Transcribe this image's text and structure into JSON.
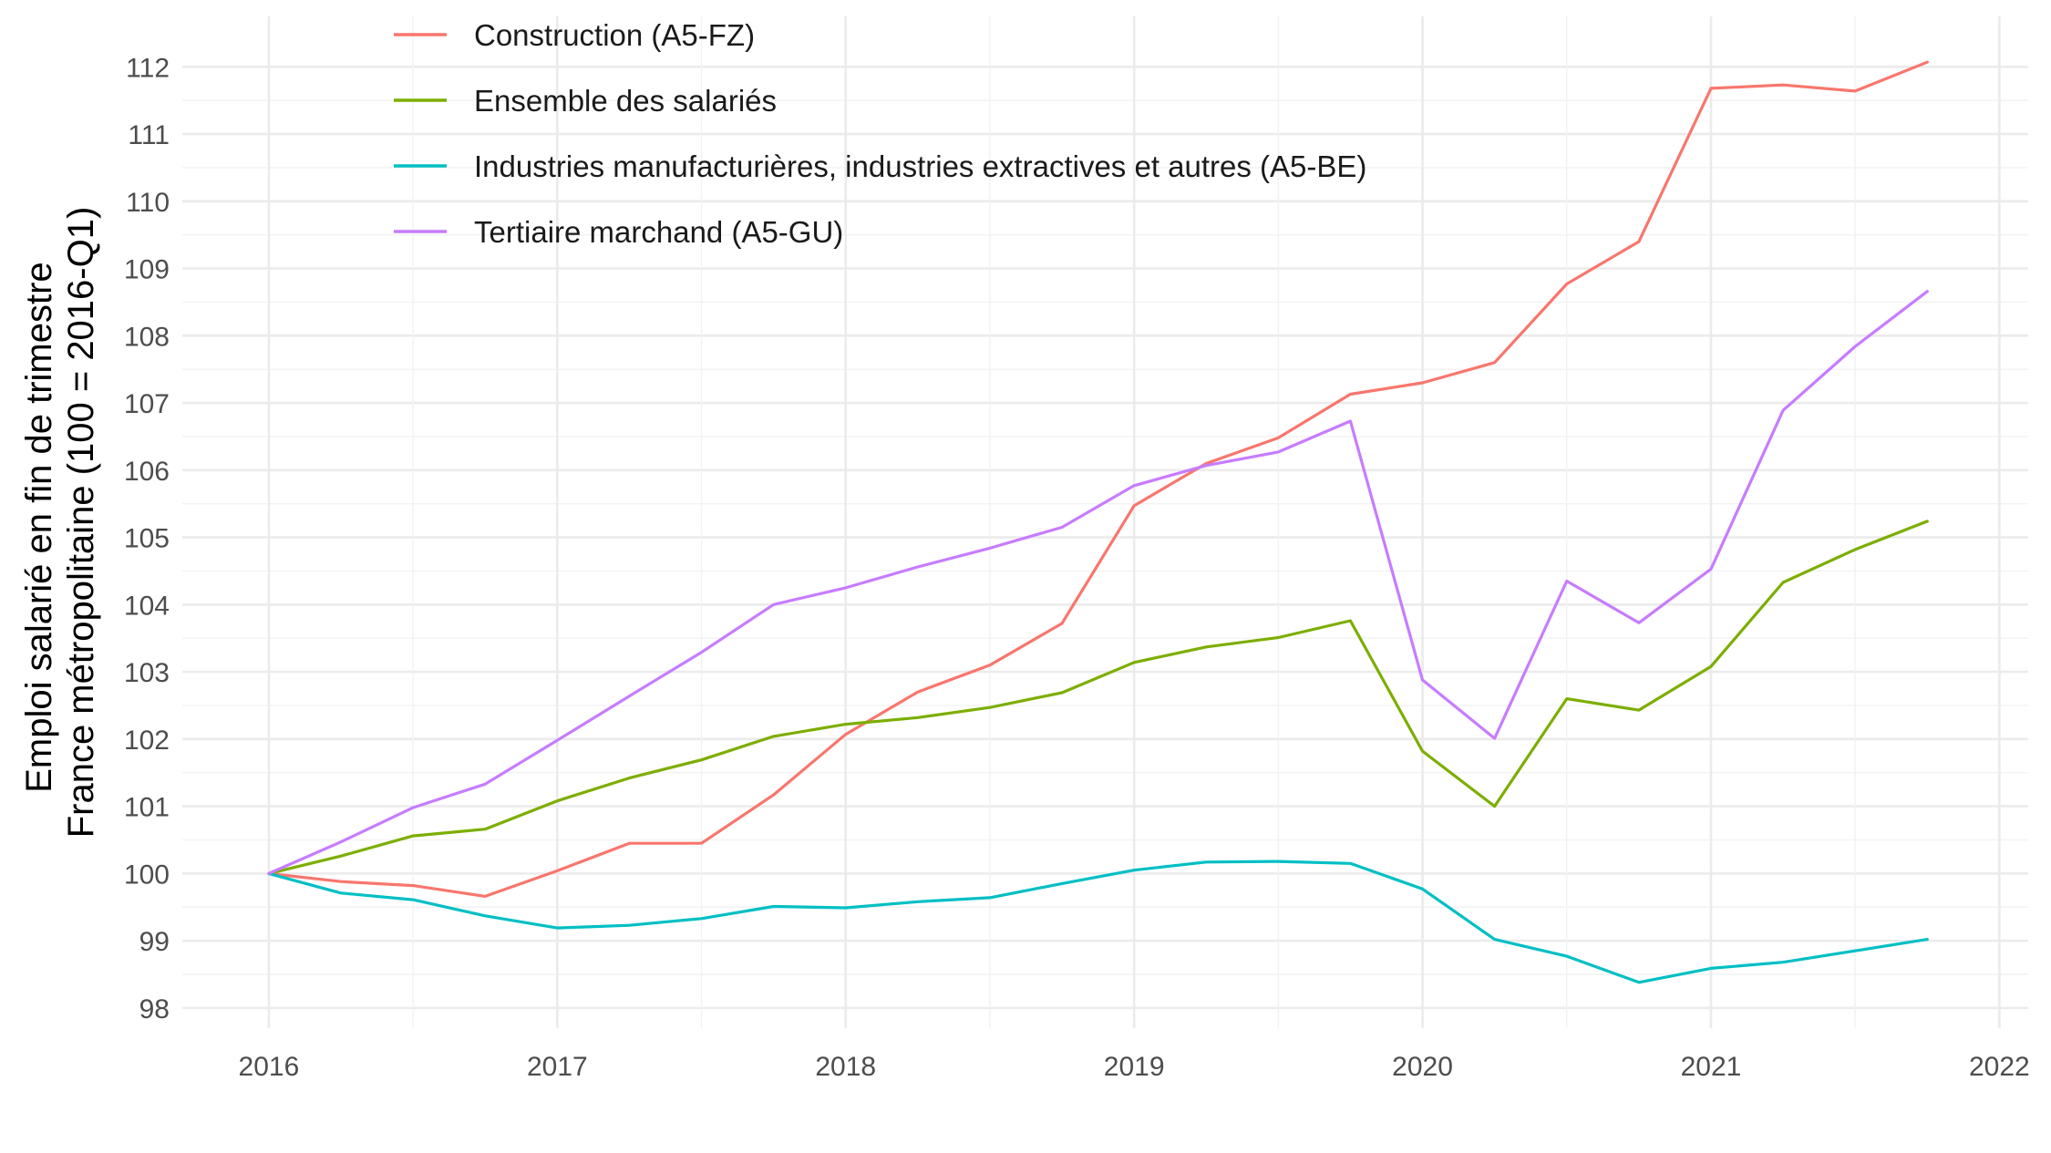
{
  "chart_data": {
    "type": "line",
    "title": "",
    "xlabel": "",
    "ylabel_lines": [
      "Emploi salarié en fin de trimestre",
      "France métropolitaine (100 = 2016-Q1)"
    ],
    "xlim": [
      2015.7,
      2022.1
    ],
    "ylim": [
      97.7,
      112.75
    ],
    "x_ticks": [
      2016,
      2017,
      2018,
      2019,
      2020,
      2021,
      2022
    ],
    "x_tick_labels": [
      "2016",
      "2017",
      "2018",
      "2019",
      "2020",
      "2021",
      "2022"
    ],
    "y_ticks": [
      98,
      99,
      100,
      101,
      102,
      103,
      104,
      105,
      106,
      107,
      108,
      109,
      110,
      111,
      112
    ],
    "y_tick_labels": [
      "98",
      "99",
      "100",
      "101",
      "102",
      "103",
      "104",
      "105",
      "106",
      "107",
      "108",
      "109",
      "110",
      "111",
      "112"
    ],
    "grid": true,
    "legend_position": "top-left",
    "x": [
      2016.0,
      2016.25,
      2016.5,
      2016.75,
      2017.0,
      2017.25,
      2017.5,
      2017.75,
      2018.0,
      2018.25,
      2018.5,
      2018.75,
      2019.0,
      2019.25,
      2019.5,
      2019.75,
      2020.0,
      2020.25,
      2020.5,
      2020.75,
      2021.0,
      2021.25,
      2021.5,
      2021.75
    ],
    "series": [
      {
        "name": "Construction (A5-FZ)",
        "color": "#F8766D",
        "values": [
          100.0,
          99.88,
          99.82,
          99.66,
          100.04,
          100.45,
          100.45,
          101.17,
          102.07,
          102.7,
          103.1,
          103.72,
          105.47,
          106.1,
          106.48,
          107.13,
          107.3,
          107.6,
          108.77,
          109.4,
          111.68,
          111.73,
          111.64,
          112.07
        ]
      },
      {
        "name": "Ensemble des salariés",
        "color": "#7CAE00",
        "values": [
          100.0,
          100.26,
          100.56,
          100.66,
          101.08,
          101.42,
          101.69,
          102.04,
          102.22,
          102.32,
          102.47,
          102.69,
          103.14,
          103.37,
          103.51,
          103.76,
          101.82,
          101.0,
          102.6,
          102.43,
          103.08,
          104.33,
          104.82,
          105.24
        ]
      },
      {
        "name": "Industries manufacturières, industries extractives et autres (A5-BE)",
        "color": "#00BFC4",
        "values": [
          100.0,
          99.71,
          99.61,
          99.37,
          99.19,
          99.23,
          99.33,
          99.51,
          99.49,
          99.58,
          99.64,
          99.85,
          100.05,
          100.17,
          100.18,
          100.15,
          99.77,
          99.02,
          98.77,
          98.38,
          98.59,
          98.68,
          98.85,
          99.02
        ]
      },
      {
        "name": "Tertiaire marchand (A5-GU)",
        "color": "#C77CFF",
        "values": [
          100.0,
          100.47,
          100.98,
          101.33,
          101.98,
          102.64,
          103.29,
          104.0,
          104.25,
          104.56,
          104.84,
          105.15,
          105.77,
          106.07,
          106.27,
          106.73,
          102.88,
          102.01,
          104.35,
          103.73,
          104.53,
          106.89,
          107.84,
          108.66
        ]
      }
    ]
  }
}
